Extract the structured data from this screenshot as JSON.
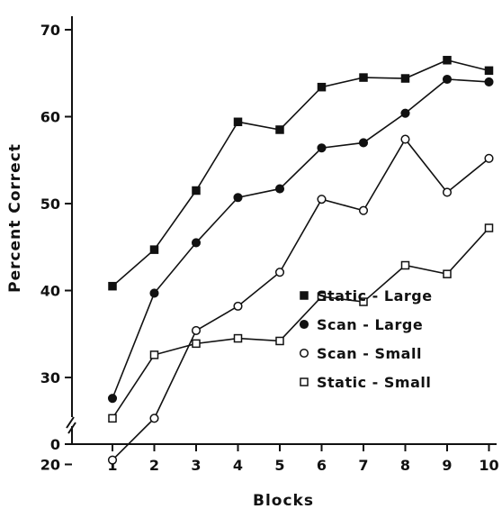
{
  "chart_data": {
    "type": "line",
    "title": "",
    "xlabel": "Blocks",
    "ylabel": "Percent Correct",
    "x": [
      1,
      2,
      3,
      4,
      5,
      6,
      7,
      8,
      9,
      10
    ],
    "xlim": [
      0,
      10
    ],
    "ylim_upper": [
      20,
      70
    ],
    "y_axis_break": true,
    "y_ticks": [
      0,
      20,
      30,
      40,
      50,
      60,
      70
    ],
    "grid": false,
    "legend_position": "center-right",
    "series": [
      {
        "name": "Static - Large",
        "marker": "filled-square",
        "values": [
          40.5,
          44.7,
          51.5,
          59.4,
          58.5,
          63.4,
          64.5,
          64.4,
          66.5,
          65.3
        ]
      },
      {
        "name": "Scan - Large",
        "marker": "filled-circle",
        "values": [
          27.6,
          39.7,
          45.5,
          50.7,
          51.7,
          56.4,
          57.0,
          60.4,
          64.3,
          64.0
        ]
      },
      {
        "name": "Scan - Small",
        "marker": "open-circle",
        "values": [
          20.5,
          25.3,
          35.4,
          38.2,
          42.1,
          50.5,
          49.2,
          57.4,
          51.3,
          55.2
        ]
      },
      {
        "name": "Static - Small",
        "marker": "open-square",
        "values": [
          25.3,
          32.6,
          33.9,
          34.5,
          34.2,
          39.3,
          38.7,
          42.9,
          41.9,
          47.2
        ]
      }
    ]
  }
}
